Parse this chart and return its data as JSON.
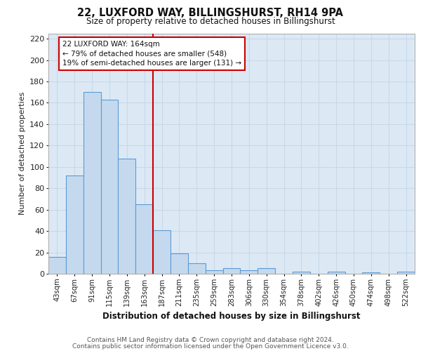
{
  "title": "22, LUXFORD WAY, BILLINGSHURST, RH14 9PA",
  "subtitle": "Size of property relative to detached houses in Billingshurst",
  "xlabel": "Distribution of detached houses by size in Billingshurst",
  "ylabel": "Number of detached properties",
  "categories": [
    "43sqm",
    "67sqm",
    "91sqm",
    "115sqm",
    "139sqm",
    "163sqm",
    "187sqm",
    "211sqm",
    "235sqm",
    "259sqm",
    "283sqm",
    "306sqm",
    "330sqm",
    "354sqm",
    "378sqm",
    "402sqm",
    "426sqm",
    "450sqm",
    "474sqm",
    "498sqm",
    "522sqm"
  ],
  "values": [
    16,
    92,
    170,
    163,
    108,
    65,
    41,
    19,
    10,
    3,
    5,
    3,
    5,
    0,
    2,
    0,
    2,
    0,
    1,
    0,
    2
  ],
  "bar_color": "#c5d9ee",
  "bar_edge_color": "#5b9bd5",
  "grid_color": "#c8d8e8",
  "bg_color": "#dce9f5",
  "vline_x": 5.5,
  "vline_color": "#cc0000",
  "annotation_text": "22 LUXFORD WAY: 164sqm\n← 79% of detached houses are smaller (548)\n19% of semi-detached houses are larger (131) →",
  "annotation_box_color": "#ffffff",
  "annotation_box_edge": "#cc0000",
  "ylim": [
    0,
    225
  ],
  "yticks": [
    0,
    20,
    40,
    60,
    80,
    100,
    120,
    140,
    160,
    180,
    200,
    220
  ],
  "footer_line1": "Contains HM Land Registry data © Crown copyright and database right 2024.",
  "footer_line2": "Contains public sector information licensed under the Open Government Licence v3.0."
}
